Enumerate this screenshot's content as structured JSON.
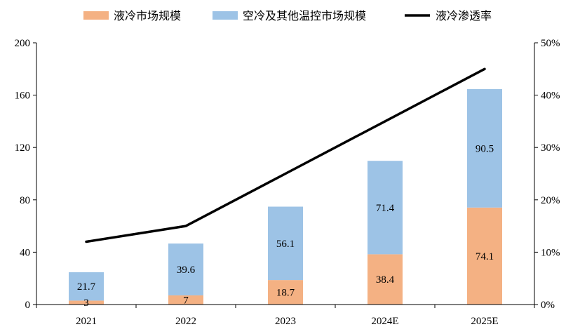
{
  "chart_data": {
    "type": "bar",
    "stacked": true,
    "categories": [
      "2021",
      "2022",
      "2023",
      "2024E",
      "2025E"
    ],
    "series": [
      {
        "name": "液冷市场规模",
        "type": "bar",
        "axis": "left",
        "color": "#F4B183",
        "values": [
          3,
          7,
          18.7,
          38.4,
          74.1
        ],
        "labels": [
          "3",
          "7",
          "18.7",
          "38.4",
          "74.1"
        ]
      },
      {
        "name": "空冷及其他温控市场规模",
        "type": "bar",
        "axis": "left",
        "color": "#9DC3E6",
        "values": [
          21.7,
          39.6,
          56.1,
          71.4,
          90.5
        ],
        "labels": [
          "21.7",
          "39.6",
          "56.1",
          "71.4",
          "90.5"
        ]
      },
      {
        "name": "液冷渗透率",
        "type": "line",
        "axis": "right",
        "color": "#000000",
        "values": [
          12,
          15,
          25,
          35,
          45
        ]
      }
    ],
    "y_left": {
      "min": 0,
      "max": 200,
      "ticks": [
        0,
        40,
        80,
        120,
        160,
        200
      ],
      "tick_labels": [
        "0",
        "40",
        "80",
        "120",
        "160",
        "200"
      ]
    },
    "y_right": {
      "min": 0,
      "max": 50,
      "ticks": [
        0,
        10,
        20,
        30,
        40,
        50
      ],
      "tick_labels": [
        "0%",
        "10%",
        "20%",
        "30%",
        "40%",
        "50%"
      ]
    },
    "legend": "top",
    "grid": false
  }
}
